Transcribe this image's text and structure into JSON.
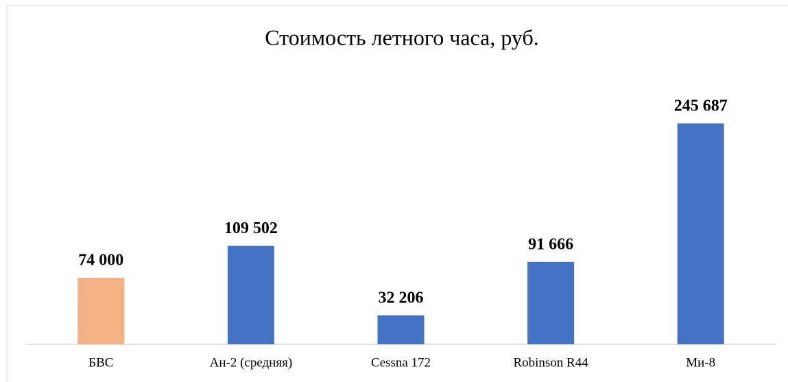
{
  "chart_data": {
    "type": "bar",
    "title": "Стоимость летного часа, руб.",
    "categories": [
      "БВС",
      "Ан-2 (средняя)",
      "Cessna 172",
      "Robinson R44",
      "Ми-8"
    ],
    "values": [
      74000,
      109502,
      32206,
      91666,
      245687
    ],
    "value_labels": [
      "74 000",
      "109 502",
      "32 206",
      "91 666",
      "245 687"
    ],
    "colors": [
      "#f4b183",
      "#4472c4",
      "#4472c4",
      "#4472c4",
      "#4472c4"
    ]
  }
}
